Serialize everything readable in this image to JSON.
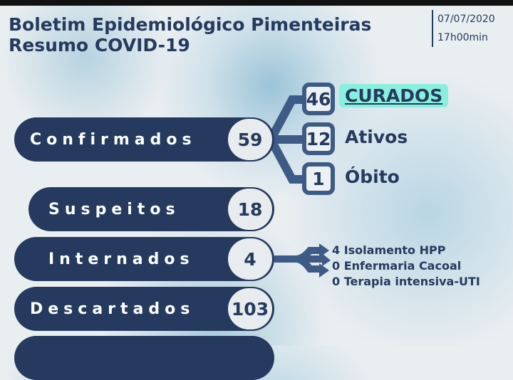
{
  "header": {
    "title_line1": "Boletim Epidemiológico Pimenteiras",
    "title_line2": "Resumo COVID-19",
    "date": "07/07/2020",
    "time": "17h00min"
  },
  "rows": [
    {
      "label": "Confirmados",
      "value": "59"
    },
    {
      "label": "Suspeitos",
      "value": "18"
    },
    {
      "label": "Internados",
      "value": "4"
    },
    {
      "label": "Descartados",
      "value": "103"
    }
  ],
  "confirmed_breakdown": [
    {
      "value": "46",
      "label": "CURADOS"
    },
    {
      "value": "12",
      "label": "Ativos"
    },
    {
      "value": "1",
      "label": "Óbito"
    }
  ],
  "hospital_breakdown": [
    "4 Isolamento HPP",
    "0 Enfermaria Cacoal",
    "0 Terapia intensiva-UTI"
  ],
  "colors": {
    "navy": "#253a5e",
    "highlight": "#8af0de"
  }
}
